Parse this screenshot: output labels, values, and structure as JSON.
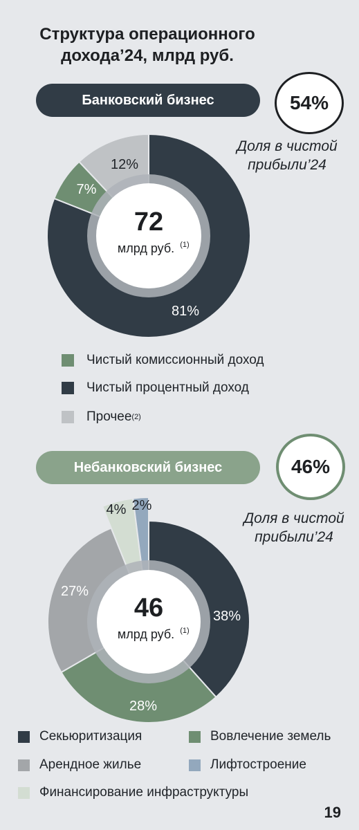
{
  "title_line1": "Структура операционного",
  "title_line2": "дохода’24, млрд руб.",
  "page_number": "19",
  "chart_data": [
    {
      "type": "pie",
      "title": "Банковский бизнес",
      "share_value": "54%",
      "share_line1": "Доля в чистой",
      "share_line2": "прибыли’24",
      "center_value": "72",
      "center_unit": "млрд руб.",
      "center_note": "(1)",
      "slices": [
        {
          "name": "Чистый процентный доход",
          "value": 81,
          "label": "81%",
          "color": "#313c46"
        },
        {
          "name": "Чистый комиссионный доход",
          "value": 7,
          "label": "7%",
          "color": "#6f8e72"
        },
        {
          "name": "Прочее",
          "value": 12,
          "label": "12%",
          "color": "#bfc2c5"
        }
      ],
      "legend": [
        {
          "label": "Чистый комиссионный доход",
          "note": "",
          "color": "#6f8e72"
        },
        {
          "label": "Чистый процентный доход",
          "note": "",
          "color": "#313c46"
        },
        {
          "label": "Прочее",
          "note": "(2)",
          "color": "#bfc2c5"
        }
      ]
    },
    {
      "type": "pie",
      "title": "Небанковский бизнес",
      "share_value": "46%",
      "share_line1": "Доля в чистой",
      "share_line2": "прибыли’24",
      "center_value": "46",
      "center_unit": "млрд руб.",
      "center_note": "(1)",
      "slices": [
        {
          "name": "Секьюритизация",
          "value": 38,
          "label": "38%",
          "color": "#313c46"
        },
        {
          "name": "Вовлечение земель",
          "value": 28,
          "label": "28%",
          "color": "#6f8e72"
        },
        {
          "name": "Арендное жилье",
          "value": 27,
          "label": "27%",
          "color": "#a3a6a9"
        },
        {
          "name": "Финансирование инфраструктуры",
          "value": 4,
          "label": "4%",
          "color": "#d3ddd2"
        },
        {
          "name": "Лифтостроение",
          "value": 2,
          "label": "2%",
          "color": "#93a8bd"
        }
      ],
      "legend": [
        {
          "label": "Секьюритизация",
          "color": "#313c46"
        },
        {
          "label": "Вовлечение земель",
          "color": "#6f8e72"
        },
        {
          "label": "Арендное жилье",
          "color": "#a3a6a9"
        },
        {
          "label": "Лифтостроение",
          "color": "#93a8bd"
        },
        {
          "label": "Финансирование инфраструктуры",
          "color": "#d3ddd2"
        }
      ]
    }
  ]
}
